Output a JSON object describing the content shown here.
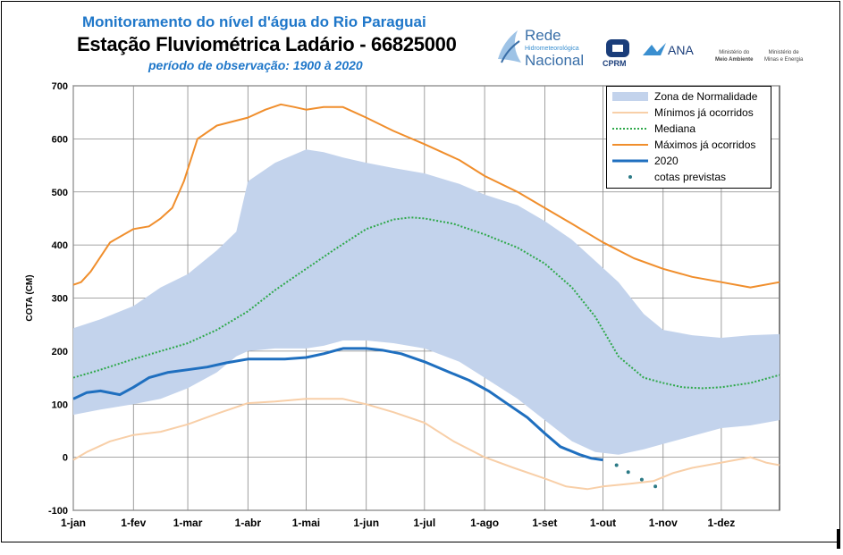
{
  "header": {
    "title_line1": "Monitoramento do nível d'água do Rio Paraguai",
    "title_line2": "Estação Fluviométrica Ladário - 66825000",
    "title_line3": "período de observação: 1900 à 2020"
  },
  "logos": {
    "rede_line1": "Rede",
    "rede_line2": "Hidrometeorológica",
    "rede_line3": "Nacional",
    "cprm": "CPRM",
    "ana": "ANA",
    "ministerio_meio_ambiente_a": "Ministério do",
    "ministerio_meio_ambiente_b": "Meio Ambiente",
    "ministerio_minas_a": "Ministério de",
    "ministerio_minas_b": "Minas e Energia"
  },
  "colors": {
    "normal_zone": "#c3d3ec",
    "minimos": "#f8cfa8",
    "mediana": "#2ea84a",
    "maximos": "#f08e2c",
    "series_2020": "#1f6fbf",
    "previstas": "#2c7a86"
  },
  "chart_data": {
    "type": "line",
    "title": "Monitoramento do nível d'água do Rio Paraguai",
    "ylabel": "COTA (CM)",
    "xlabel": "",
    "ylim": [
      -100,
      700
    ],
    "xlim_days": [
      1,
      365
    ],
    "yticks": [
      -100,
      0,
      100,
      200,
      300,
      400,
      500,
      600,
      700
    ],
    "xtick_days": [
      1,
      32,
      60,
      91,
      121,
      152,
      182,
      213,
      244,
      274,
      305,
      335
    ],
    "xtick_labels": [
      "1-jan",
      "1-fev",
      "1-mar",
      "1-abr",
      "1-mai",
      "1-jun",
      "1-jul",
      "1-ago",
      "1-set",
      "1-out",
      "1-nov",
      "1-dez"
    ],
    "legend": [
      "Zona de Normalidade",
      "Mínimos já ocorridos",
      "Mediana",
      "Máximos já ocorridos",
      "2020",
      "cotas previstas"
    ],
    "legend_position": "top-right",
    "series": [
      {
        "name": "Zona de Normalidade",
        "type": "band",
        "x": [
          1,
          15,
          32,
          46,
          60,
          75,
          85,
          91,
          105,
          121,
          130,
          140,
          152,
          166,
          182,
          200,
          213,
          230,
          244,
          258,
          270,
          282,
          295,
          305,
          320,
          335,
          350,
          365
        ],
        "upper": [
          243,
          260,
          285,
          320,
          345,
          390,
          425,
          520,
          555,
          580,
          575,
          565,
          555,
          545,
          535,
          515,
          495,
          475,
          445,
          410,
          370,
          330,
          270,
          240,
          230,
          225,
          230,
          232
        ],
        "lower": [
          80,
          90,
          100,
          110,
          130,
          160,
          190,
          200,
          205,
          205,
          210,
          220,
          220,
          215,
          205,
          180,
          150,
          110,
          70,
          30,
          10,
          5,
          15,
          25,
          40,
          55,
          60,
          70
        ]
      },
      {
        "name": "Mínimos já ocorridos",
        "x": [
          1,
          8,
          20,
          32,
          46,
          60,
          75,
          91,
          105,
          121,
          130,
          140,
          152,
          166,
          182,
          197,
          213,
          228,
          244,
          255,
          266,
          274,
          288,
          300,
          310,
          320,
          335,
          350,
          358,
          365
        ],
        "y": [
          -5,
          10,
          30,
          42,
          48,
          62,
          82,
          102,
          105,
          110,
          110,
          110,
          100,
          85,
          65,
          30,
          0,
          -20,
          -40,
          -55,
          -60,
          -55,
          -50,
          -45,
          -30,
          -20,
          -10,
          0,
          -10,
          -15
        ]
      },
      {
        "name": "Mediana",
        "x": [
          1,
          15,
          32,
          46,
          60,
          75,
          91,
          105,
          121,
          135,
          152,
          166,
          175,
          182,
          197,
          213,
          230,
          244,
          258,
          270,
          282,
          295,
          305,
          315,
          325,
          335,
          350,
          365
        ],
        "y": [
          150,
          165,
          185,
          200,
          215,
          240,
          275,
          315,
          355,
          390,
          430,
          448,
          452,
          450,
          440,
          420,
          395,
          365,
          320,
          265,
          190,
          150,
          140,
          132,
          130,
          132,
          140,
          155
        ]
      },
      {
        "name": "Máximos já ocorridos",
        "x": [
          1,
          5,
          10,
          20,
          32,
          40,
          46,
          52,
          58,
          65,
          75,
          91,
          100,
          108,
          115,
          121,
          130,
          140,
          152,
          166,
          182,
          200,
          213,
          230,
          244,
          258,
          274,
          290,
          305,
          320,
          335,
          350,
          365
        ],
        "y": [
          325,
          330,
          350,
          405,
          430,
          435,
          450,
          470,
          520,
          600,
          625,
          640,
          655,
          665,
          660,
          655,
          660,
          660,
          640,
          615,
          590,
          560,
          530,
          500,
          470,
          440,
          405,
          375,
          355,
          340,
          330,
          320,
          330
        ]
      },
      {
        "name": "2020",
        "x": [
          1,
          8,
          15,
          25,
          32,
          40,
          50,
          60,
          70,
          80,
          91,
          100,
          110,
          121,
          130,
          140,
          152,
          160,
          170,
          182,
          195,
          205,
          215,
          225,
          235,
          244,
          252,
          262,
          268,
          274
        ],
        "y": [
          110,
          122,
          125,
          118,
          132,
          150,
          160,
          165,
          170,
          178,
          185,
          185,
          185,
          188,
          195,
          205,
          205,
          202,
          195,
          180,
          160,
          145,
          125,
          100,
          75,
          45,
          20,
          5,
          -2,
          -5
        ]
      },
      {
        "name": "cotas previstas",
        "type": "scatter",
        "x": [
          281,
          287,
          294,
          301
        ],
        "y": [
          -15,
          -28,
          -42,
          -55
        ]
      }
    ]
  }
}
